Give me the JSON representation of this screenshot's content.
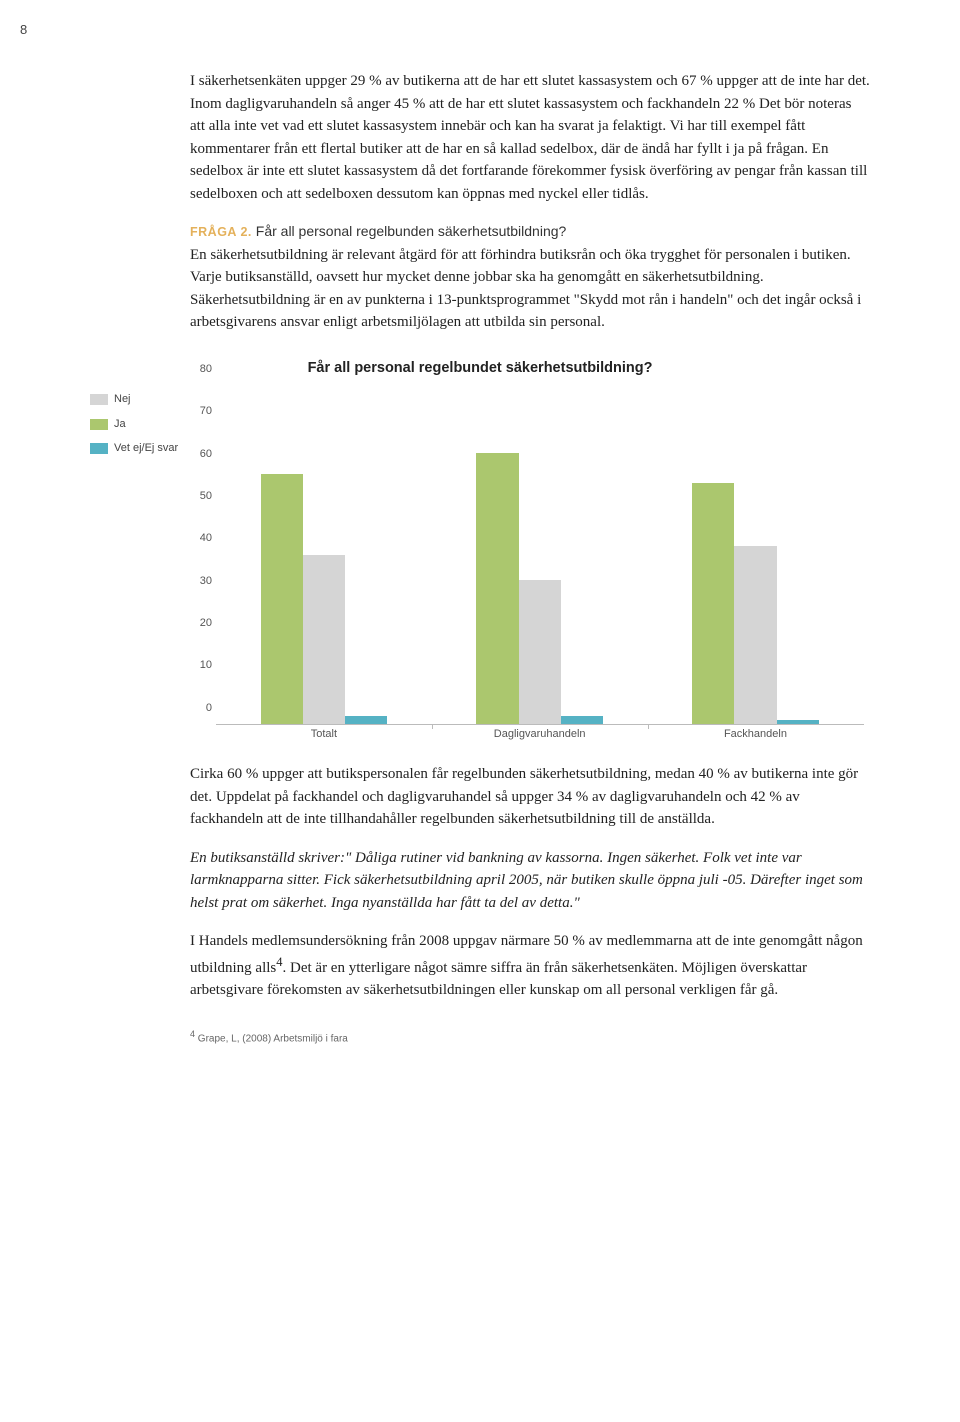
{
  "page_number": "8",
  "body": {
    "p1": "I säkerhetsenkäten uppger 29 % av butikerna att de har ett slutet kassasystem och 67 % uppger att de inte har det. Inom dagligvaruhandeln så anger 45 % att de har ett slutet kassasystem och fackhandeln 22 % Det bör noteras att alla inte vet vad ett slutet kassasystem innebär och kan ha svarat ja felaktigt. Vi har till exempel fått kommentarer från ett flertal butiker att de har en så kallad sedelbox, där de ändå har fyllt i ja på frågan. En sedelbox är inte ett slutet kassasystem då det fortfarande förekommer fysisk överföring av pengar från kassan till sedelboxen och att sedelboxen dessutom kan öppnas med nyckel eller tidlås.",
    "q2_label": "FRÅGA 2.",
    "q2_text": " Får all personal regelbunden säkerhetsutbildning?",
    "p2": "En säkerhetsutbildning är relevant åtgärd för att förhindra butiksrån och öka trygghet för personalen i butiken. Varje butiksanställd, oavsett hur mycket denne jobbar ska ha genomgått en säkerhetsutbildning. Säkerhetsutbildning är en av punkterna i 13-punktsprogrammet \"Skydd mot rån i handeln\" och det ingår också i arbetsgivarens ansvar enligt arbetsmiljölagen att utbilda sin personal.",
    "p3": "Cirka 60 % uppger att butikspersonalen får regelbunden säkerhetsutbildning, medan 40 % av butikerna inte gör det. Uppdelat på fackhandel och dagligvaruhandel så uppger 34 % av dagligvaruhandeln och 42 % av fackhandeln att de inte tillhandahåller regelbunden säkerhetsutbildning till de anställda.",
    "p4": "En butiksanställd skriver:\" Dåliga rutiner vid bankning av kassorna. Ingen säkerhet. Folk vet inte var larmknapparna sitter. Fick säkerhetsutbildning april 2005, när butiken skulle öppna juli -05. Därefter inget som helst prat om säkerhet. Inga nyanställda har fått ta del av detta.\"",
    "p5_a": "I Handels medlemsundersökning från 2008 uppgav närmare 50 % av medlemmarna att de inte genomgått någon utbildning alls",
    "p5_sup": "4",
    "p5_b": ". Det är en ytterligare något sämre siffra än från säkerhetsenkäten. Möjligen överskattar arbetsgivare förekomsten av säkerhetsutbildningen eller kunskap om all personal verkligen får gå."
  },
  "chart": {
    "title": "Får all personal regelbundet säkerhetsutbildning?",
    "type": "bar",
    "ylim": [
      0,
      80
    ],
    "ytick_step": 10,
    "categories": [
      "Totalt",
      "Dagligvaruhandeln",
      "Fackhandeln"
    ],
    "series": [
      {
        "name": "Nej",
        "color": "#d5d5d5",
        "values": [
          40,
          34,
          42
        ]
      },
      {
        "name": "Ja",
        "color": "#abc76e",
        "values": [
          59,
          64,
          57
        ]
      },
      {
        "name": "Vet ej/Ej svar",
        "color": "#55b2c4",
        "values": [
          2,
          2,
          1
        ]
      }
    ],
    "category_tick_boundaries": [
      33.3,
      66.7
    ],
    "bar_width_pct": 6.5,
    "group_width_pct": 33.3,
    "bg": "#ffffff",
    "axis_font_size": 11
  },
  "footnote": {
    "marker": "4",
    "text": " Grape, L, (2008) Arbetsmiljö i fara"
  }
}
